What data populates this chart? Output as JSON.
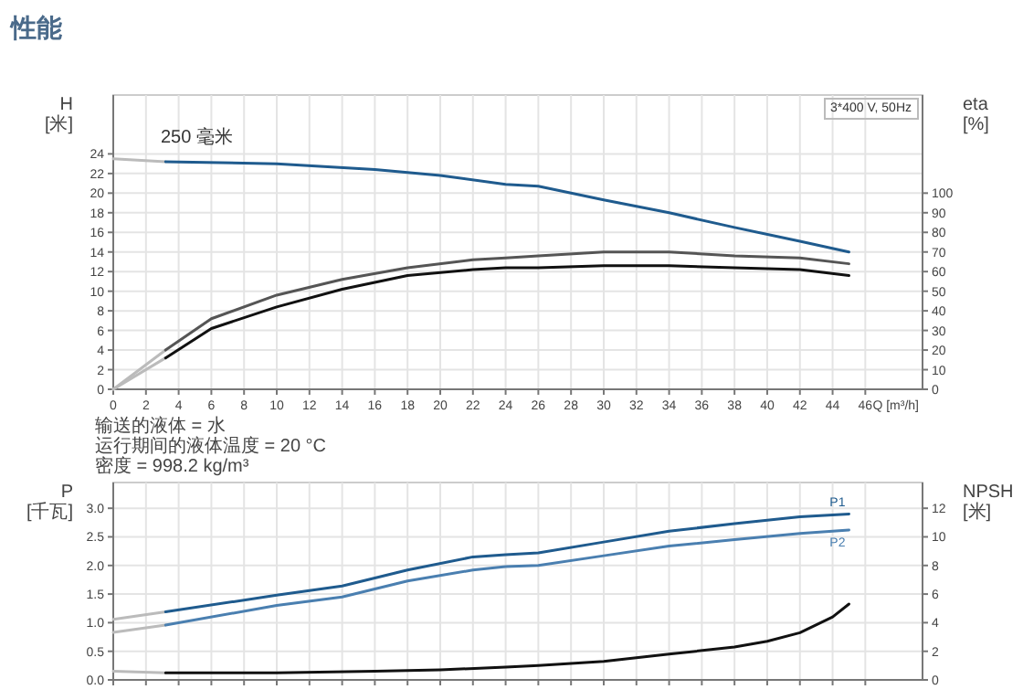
{
  "chart_data": [
    {
      "type": "line",
      "title": "性能",
      "xlabel": "Q [m³/h]",
      "ylabel": "H [米]",
      "y2label": "eta [%]",
      "xlim": [
        0,
        49.5
      ],
      "xticks": [
        0,
        2,
        4,
        6,
        8,
        10,
        12,
        14,
        16,
        18,
        20,
        22,
        24,
        26,
        28,
        30,
        32,
        34,
        36,
        38,
        40,
        42,
        44,
        46
      ],
      "ylim": [
        0,
        30
      ],
      "yticks": [
        0,
        2,
        4,
        6,
        8,
        10,
        12,
        14,
        16,
        18,
        20,
        22,
        24
      ],
      "y2lim": [
        0,
        150
      ],
      "y2ticks": [
        0,
        10,
        20,
        30,
        40,
        50,
        60,
        70,
        80,
        90,
        100
      ],
      "grid": true,
      "annotations": [
        "3*400 V, 50Hz",
        "250 毫米",
        "输送的液体 = 水",
        "运行期间的液体温度 = 20 °C",
        "密度 = 998.2 kg/m³"
      ],
      "series": [
        {
          "color": "#bbbbbb",
          "x": [
            0,
            3.2
          ],
          "values": [
            23.5,
            23.2
          ]
        },
        {
          "color": "#1f5b8e",
          "x": [
            3.2,
            10,
            16,
            20,
            24,
            26,
            30,
            34,
            38,
            42,
            45
          ],
          "values": [
            23.2,
            23.0,
            22.4,
            21.8,
            20.9,
            20.7,
            19.3,
            18.0,
            16.5,
            15.1,
            14.0
          ]
        },
        {
          "color": "#bbbbbb",
          "axis": "y2",
          "x": [
            0,
            3.2
          ],
          "values": [
            0,
            20
          ]
        },
        {
          "color": "#bbbbbb",
          "axis": "y2",
          "x": [
            0,
            3.2
          ],
          "values": [
            0,
            16
          ]
        },
        {
          "color": "#555555",
          "axis": "y2",
          "x": [
            3.2,
            6,
            10,
            14,
            18,
            22,
            24,
            26,
            30,
            34,
            38,
            42,
            45
          ],
          "values": [
            20,
            36,
            48,
            56,
            62,
            66,
            67,
            68,
            70,
            70,
            68,
            67,
            64
          ]
        },
        {
          "color": "#111111",
          "axis": "y2",
          "x": [
            3.2,
            6,
            10,
            14,
            18,
            22,
            24,
            26,
            30,
            34,
            38,
            42,
            45
          ],
          "values": [
            16,
            31,
            42,
            51,
            58,
            61,
            62,
            62,
            63,
            63,
            62,
            61,
            58
          ]
        }
      ]
    },
    {
      "type": "line",
      "ylabel": "P [千瓦]",
      "y2label": "NPSH [米]",
      "xlim": [
        0,
        49.5
      ],
      "xticks": [
        {
          "value": 0,
          "label": null
        },
        {
          "value": 2,
          "label": null
        },
        {
          "value": 4,
          "label": null
        },
        {
          "value": 6,
          "label": null
        },
        {
          "value": 8,
          "label": null
        },
        {
          "value": 10,
          "label": null
        },
        {
          "value": 12,
          "label": null
        },
        {
          "value": 14,
          "label": null
        },
        {
          "value": 16,
          "label": null
        },
        {
          "value": 18,
          "label": null
        },
        {
          "value": 20,
          "label": null
        },
        {
          "value": 22,
          "label": null
        },
        {
          "value": 24,
          "label": null
        },
        {
          "value": 26,
          "label": null
        },
        {
          "value": 28,
          "label": null
        },
        {
          "value": 30,
          "label": null
        },
        {
          "value": 32,
          "label": null
        },
        {
          "value": 34,
          "label": null
        },
        {
          "value": 36,
          "label": null
        },
        {
          "value": 38,
          "label": null
        },
        {
          "value": 40,
          "label": null
        },
        {
          "value": 42,
          "label": null
        },
        {
          "value": 44,
          "label": null
        },
        {
          "value": 46,
          "label": null
        }
      ],
      "ylim": [
        0,
        3.45
      ],
      "yticks": [
        {
          "value": 0,
          "label": "0.0"
        },
        {
          "value": 0.5,
          "label": "0.5"
        },
        {
          "value": 1,
          "label": "1.0"
        },
        {
          "value": 1.5,
          "label": "1.5"
        },
        {
          "value": 2,
          "label": "2.0"
        },
        {
          "value": 2.5,
          "label": "2.5"
        },
        {
          "value": 3,
          "label": "3.0"
        }
      ],
      "y2lim": [
        0,
        13.8
      ],
      "y2ticks": [
        0,
        2,
        4,
        6,
        8,
        10,
        12
      ],
      "grid": true,
      "tick_labels": "y",
      "series": [
        {
          "color": "#bbbbbb",
          "x": [
            0,
            3.2
          ],
          "values": [
            1.06,
            1.19
          ]
        },
        {
          "name": "P1",
          "color": "#1f5b8e",
          "x": [
            3.2,
            10,
            14,
            18,
            22,
            24,
            26,
            30,
            34,
            38,
            42,
            45
          ],
          "values": [
            1.19,
            1.48,
            1.64,
            1.92,
            2.15,
            2.19,
            2.22,
            2.41,
            2.6,
            2.73,
            2.85,
            2.9
          ]
        },
        {
          "color": "#bbbbbb",
          "x": [
            0,
            3.2
          ],
          "values": [
            0.83,
            0.96
          ]
        },
        {
          "name": "P2",
          "color": "#4a7fb0",
          "x": [
            3.2,
            10,
            14,
            18,
            22,
            24,
            26,
            30,
            34,
            38,
            42,
            45
          ],
          "values": [
            0.96,
            1.3,
            1.45,
            1.73,
            1.92,
            1.98,
            2.0,
            2.17,
            2.34,
            2.45,
            2.56,
            2.62
          ]
        },
        {
          "color": "#bbbbbb",
          "axis": "y2",
          "x": [
            0,
            3.2
          ],
          "values": [
            0.6,
            0.5
          ]
        },
        {
          "color": "#111111",
          "axis": "y2",
          "x": [
            3.2,
            10,
            16,
            20,
            24,
            26,
            30,
            34,
            38,
            40,
            42,
            44,
            45
          ],
          "values": [
            0.5,
            0.5,
            0.6,
            0.7,
            0.9,
            1.0,
            1.3,
            1.8,
            2.3,
            2.7,
            3.3,
            4.4,
            5.3
          ]
        }
      ]
    }
  ]
}
